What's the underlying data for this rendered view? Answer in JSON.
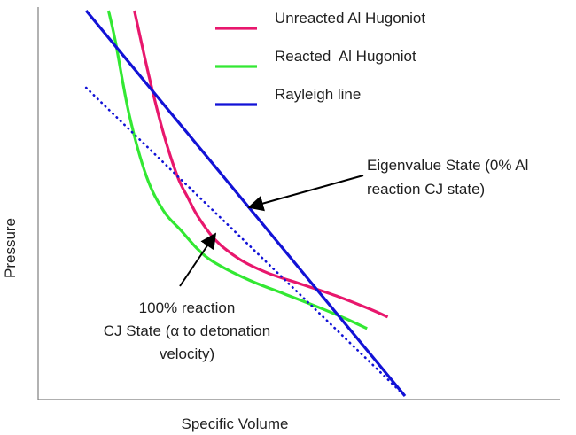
{
  "chart_data": {
    "type": "line",
    "title": "",
    "xlabel": "Specific Volume",
    "ylabel": "Pressure",
    "grid": false,
    "legend_position": "top-right",
    "axes_ticks": "none",
    "series": [
      {
        "name": "Unreacted Al Hugoniot",
        "color": "#e8176d",
        "style": "solid",
        "points": [
          [
            0.215,
            1.0
          ],
          [
            0.26,
            0.82
          ],
          [
            0.3,
            0.68
          ],
          [
            0.34,
            0.57
          ],
          [
            0.37,
            0.515
          ],
          [
            0.4,
            0.465
          ],
          [
            0.45,
            0.405
          ],
          [
            0.52,
            0.355
          ],
          [
            0.6,
            0.32
          ],
          [
            0.7,
            0.29
          ],
          [
            0.8,
            0.26
          ],
          [
            0.9,
            0.225
          ],
          [
            0.95,
            0.205
          ]
        ]
      },
      {
        "name": "Reacted  Al Hugoniot",
        "color": "#33e833",
        "style": "solid",
        "points": [
          [
            0.14,
            1.0
          ],
          [
            0.16,
            0.92
          ],
          [
            0.2,
            0.73
          ],
          [
            0.25,
            0.57
          ],
          [
            0.3,
            0.48
          ],
          [
            0.35,
            0.43
          ],
          [
            0.4,
            0.38
          ],
          [
            0.45,
            0.345
          ],
          [
            0.55,
            0.3
          ],
          [
            0.65,
            0.265
          ],
          [
            0.75,
            0.23
          ],
          [
            0.83,
            0.2
          ],
          [
            0.89,
            0.175
          ]
        ]
      },
      {
        "name": "Rayleigh line",
        "color": "#1212d6",
        "style": "solid",
        "points": [
          [
            0.075,
            1.0
          ],
          [
            1.0,
            0.0
          ]
        ]
      },
      {
        "name": "",
        "color": "#1212d6",
        "style": "dotted",
        "points": [
          [
            0.075,
            0.8
          ],
          [
            1.0,
            0.0
          ]
        ]
      }
    ],
    "annotations": [
      {
        "text_lines": [
          "Eigenvalue State (0% Al",
          "reaction CJ state)"
        ],
        "points_to": [
          0.5,
          0.525
        ]
      },
      {
        "text_lines": [
          "100% reaction",
          "CJ State (α to detonation",
          "velocity)"
        ],
        "points_to": [
          0.44,
          0.43
        ]
      }
    ]
  }
}
